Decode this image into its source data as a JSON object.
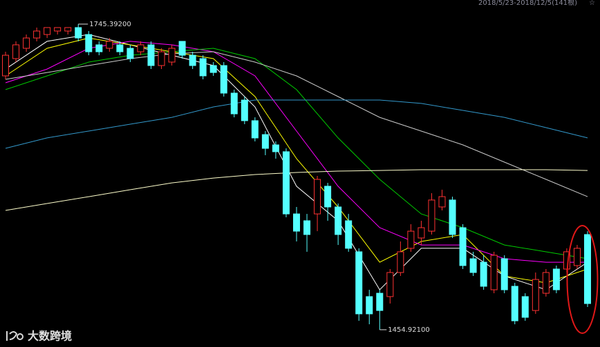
{
  "chart_data": {
    "type": "candlestick",
    "range_label": "2018/5/23-2018/12/5(141根)",
    "max_label": "1745.39200",
    "min_label": "1454.92100",
    "watermark": "大数跨境",
    "ylim": [
      1438.5,
      1768.3
    ],
    "up_color": "#ff3232",
    "down_color": "#54ffff",
    "open": [
      1696.2,
      1712.6,
      1722.4,
      1732.2,
      1735.5,
      1738.8,
      1738.8,
      1742.1,
      1735.5,
      1725.7,
      1722.4,
      1725.7,
      1722.4,
      1719.1,
      1725.7,
      1706.0,
      1709.3,
      1729.0,
      1715.8,
      1712.6,
      1706.0,
      1706.0,
      1679.8,
      1673.2,
      1653.6,
      1640.4,
      1630.6,
      1624.1,
      1565.0,
      1558.5,
      1565.0,
      1591.3,
      1571.6,
      1558.5,
      1529.0,
      1486.4,
      1489.6,
      1486.4,
      1509.3,
      1532.3,
      1542.1,
      1548.6,
      1571.6,
      1578.2,
      1551.9,
      1522.4,
      1519.1,
      1492.9,
      1522.4,
      1496.2,
      1486.4,
      1473.2,
      1489.6,
      1512.6,
      1512.6,
      1515.9,
      1545.4
    ],
    "high": [
      1719.1,
      1729.0,
      1735.5,
      1742.1,
      1742.1,
      1742.1,
      1742.1,
      1745.39,
      1738.8,
      1729.0,
      1732.2,
      1729.0,
      1725.7,
      1729.0,
      1729.0,
      1722.4,
      1725.7,
      1729.0,
      1719.1,
      1715.8,
      1709.3,
      1709.3,
      1683.1,
      1676.5,
      1656.8,
      1643.7,
      1633.9,
      1627.3,
      1571.6,
      1565.0,
      1601.1,
      1594.5,
      1574.9,
      1565.0,
      1532.3,
      1492.9,
      1492.9,
      1512.6,
      1538.8,
      1555.2,
      1558.5,
      1584.7,
      1588.0,
      1581.4,
      1555.2,
      1529.0,
      1525.7,
      1529.0,
      1525.7,
      1499.5,
      1489.6,
      1509.3,
      1512.6,
      1515.9,
      1532.3,
      1535.5,
      1548.6
    ],
    "low": [
      1692.9,
      1709.3,
      1719.1,
      1729.0,
      1732.2,
      1735.5,
      1735.5,
      1729.0,
      1715.8,
      1715.8,
      1719.1,
      1715.8,
      1709.3,
      1715.8,
      1702.7,
      1702.7,
      1706.0,
      1712.6,
      1702.7,
      1692.9,
      1696.2,
      1676.5,
      1656.8,
      1650.3,
      1633.9,
      1620.8,
      1617.5,
      1561.8,
      1538.8,
      1529.0,
      1548.6,
      1558.5,
      1535.5,
      1529.0,
      1463.4,
      1460.1,
      1454.921,
      1479.8,
      1506.0,
      1529.0,
      1535.5,
      1545.4,
      1568.3,
      1542.1,
      1512.6,
      1506.0,
      1492.9,
      1489.6,
      1489.6,
      1460.1,
      1463.4,
      1470.0,
      1486.4,
      1489.6,
      1509.3,
      1512.6,
      1476.5
    ],
    "close": [
      1715.8,
      1725.7,
      1732.2,
      1738.8,
      1742.1,
      1742.1,
      1742.1,
      1732.2,
      1719.1,
      1719.1,
      1729.0,
      1719.1,
      1712.6,
      1725.7,
      1706.0,
      1719.1,
      1722.4,
      1715.8,
      1706.0,
      1696.2,
      1699.4,
      1679.8,
      1660.1,
      1653.6,
      1637.2,
      1627.3,
      1624.1,
      1565.0,
      1548.6,
      1545.4,
      1597.8,
      1571.6,
      1545.4,
      1532.3,
      1470.0,
      1470.0,
      1473.2,
      1509.3,
      1529.0,
      1548.6,
      1551.9,
      1578.2,
      1581.4,
      1545.4,
      1515.9,
      1509.3,
      1496.2,
      1525.7,
      1492.9,
      1463.4,
      1466.7,
      1502.7,
      1509.3,
      1492.9,
      1529.0,
      1532.3,
      1479.8
    ],
    "series": [
      {
        "color": "#ffffff",
        "x": [
          0,
          4,
          8,
          12,
          16,
          20,
          24,
          28,
          32,
          36,
          40,
          44,
          48,
          52,
          56
        ],
        "values": [
          1702.7,
          1729.0,
          1735.5,
          1725.7,
          1715.8,
          1706.0,
          1666.7,
          1591.3,
          1558.5,
          1492.9,
          1532.3,
          1532.3,
          1506.0,
          1492.9,
          1519.1
        ]
      },
      {
        "color": "#ffff00",
        "x": [
          0,
          4,
          8,
          12,
          16,
          20,
          24,
          28,
          32,
          36,
          40,
          44,
          48,
          52,
          56
        ],
        "values": [
          1696.2,
          1722.4,
          1732.2,
          1725.7,
          1719.1,
          1712.6,
          1676.5,
          1617.5,
          1571.6,
          1519.1,
          1538.8,
          1545.4,
          1506.0,
          1499.5,
          1512.6
        ]
      },
      {
        "color": "#ff00ff",
        "x": [
          0,
          4,
          8,
          12,
          16,
          20,
          24,
          28,
          32,
          36,
          40,
          44,
          48,
          52,
          56
        ],
        "values": [
          1689.6,
          1702.7,
          1722.4,
          1729.0,
          1725.7,
          1719.1,
          1696.2,
          1643.7,
          1591.3,
          1551.9,
          1535.5,
          1535.5,
          1522.4,
          1519.1,
          1519.1
        ]
      },
      {
        "color": "#00cc00",
        "x": [
          0,
          4,
          8,
          12,
          16,
          20,
          24,
          28,
          32,
          36,
          40,
          44,
          48,
          52,
          56
        ],
        "values": [
          1683.1,
          1696.2,
          1709.3,
          1715.8,
          1719.1,
          1722.4,
          1712.6,
          1683.1,
          1637.2,
          1597.8,
          1565.0,
          1551.9,
          1535.5,
          1529.0,
          1522.4
        ]
      },
      {
        "color": "#cccccc",
        "x": [
          0,
          4,
          8,
          12,
          16,
          20,
          24,
          28,
          32,
          36,
          40,
          44,
          48,
          52,
          56
        ],
        "values": [
          1692.9,
          1699.4,
          1706.0,
          1712.6,
          1717.2,
          1719.1,
          1709.3,
          1696.2,
          1676.5,
          1656.8,
          1643.7,
          1630.6,
          1614.2,
          1597.8,
          1581.4
        ]
      },
      {
        "color": "#3399cc",
        "x": [
          0,
          4,
          8,
          12,
          16,
          20,
          24,
          28,
          32,
          36,
          40,
          44,
          48,
          52,
          56
        ],
        "values": [
          1627.3,
          1637.2,
          1643.7,
          1650.3,
          1656.8,
          1666.7,
          1673.2,
          1673.2,
          1673.2,
          1673.2,
          1670.0,
          1663.4,
          1656.8,
          1647.0,
          1637.2
        ]
      },
      {
        "color": "#ffffcc",
        "x": [
          0,
          4,
          8,
          12,
          16,
          20,
          24,
          28,
          32,
          36,
          40,
          44,
          48,
          52,
          56
        ],
        "values": [
          1568.3,
          1574.9,
          1581.4,
          1588.0,
          1594.5,
          1599.1,
          1602.4,
          1604.4,
          1605.7,
          1606.3,
          1607.0,
          1607.0,
          1607.0,
          1607.0,
          1606.3
        ]
      }
    ]
  }
}
